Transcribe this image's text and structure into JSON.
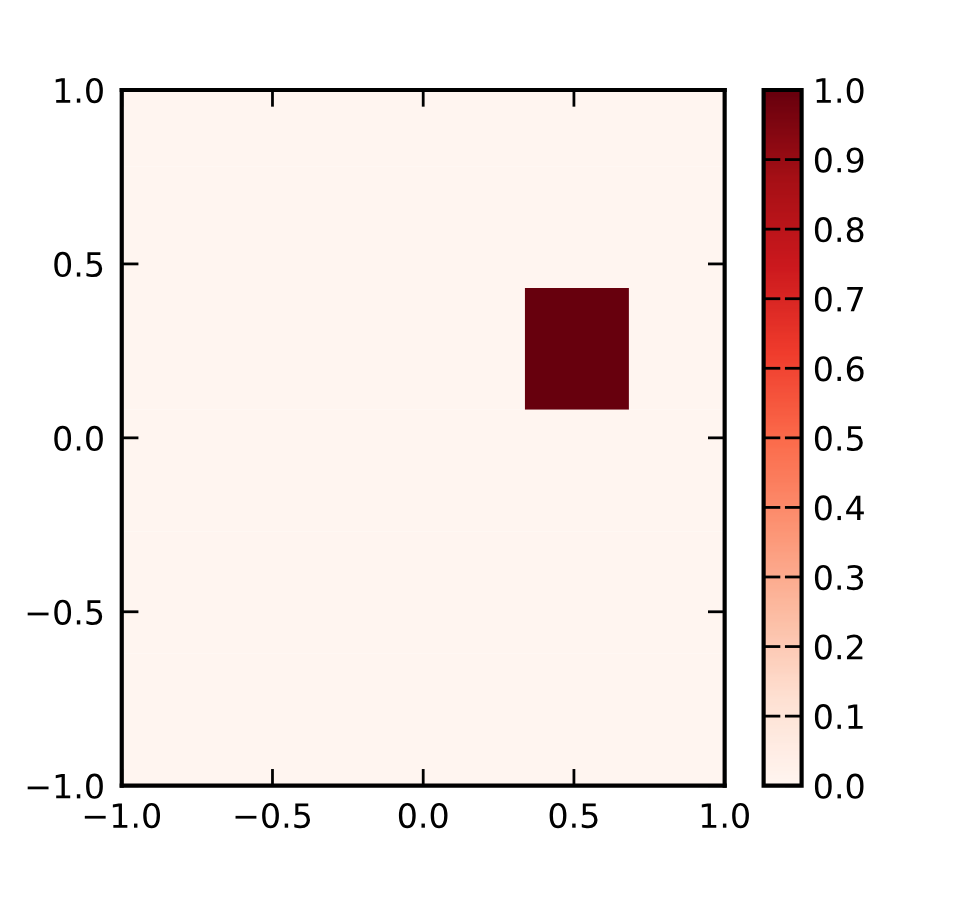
{
  "chart_data": {
    "type": "heatmap",
    "x": [
      -0.87,
      -0.525,
      -0.18,
      0.165,
      0.51,
      0.855
    ],
    "y": [
      0.956,
      0.606,
      0.256,
      -0.094,
      -0.444,
      -0.794,
      -1.144
    ],
    "cells": [
      [
        0,
        0,
        0,
        0,
        0,
        0
      ],
      [
        0,
        0,
        0,
        0,
        0,
        0
      ],
      [
        0,
        0,
        0,
        0,
        1,
        0
      ],
      [
        0,
        0,
        0,
        0,
        0,
        0
      ],
      [
        0,
        0,
        0,
        0,
        0,
        0
      ],
      [
        0,
        0,
        0,
        0,
        0,
        0
      ],
      [
        0,
        0,
        0,
        0,
        0,
        0
      ]
    ],
    "xlim": [
      -1,
      1
    ],
    "ylim": [
      -1,
      1
    ],
    "xticks": [
      {
        "value": -1,
        "label": "−1.0"
      },
      {
        "value": -0.5,
        "label": "−0.5"
      },
      {
        "value": 0,
        "label": "0.0"
      },
      {
        "value": 0.5,
        "label": "0.5"
      },
      {
        "value": 1,
        "label": "1.0"
      }
    ],
    "yticks": [
      {
        "value": -1,
        "label": "−1.0"
      },
      {
        "value": -0.5,
        "label": "−0.5"
      },
      {
        "value": 0,
        "label": "0.0"
      },
      {
        "value": 0.5,
        "label": "0.5"
      },
      {
        "value": 1,
        "label": "1.0"
      }
    ],
    "clim": [
      0,
      1
    ],
    "cticks": [
      {
        "value": 0,
        "label": "0.0"
      },
      {
        "value": 0.1,
        "label": "0.1"
      },
      {
        "value": 0.2,
        "label": "0.2"
      },
      {
        "value": 0.3,
        "label": "0.3"
      },
      {
        "value": 0.4,
        "label": "0.4"
      },
      {
        "value": 0.5,
        "label": "0.5"
      },
      {
        "value": 0.6,
        "label": "0.6"
      },
      {
        "value": 0.7,
        "label": "0.7"
      },
      {
        "value": 0.8,
        "label": "0.8"
      },
      {
        "value": 0.9,
        "label": "0.9"
      },
      {
        "value": 1,
        "label": "1.0"
      }
    ],
    "grid": false
  }
}
